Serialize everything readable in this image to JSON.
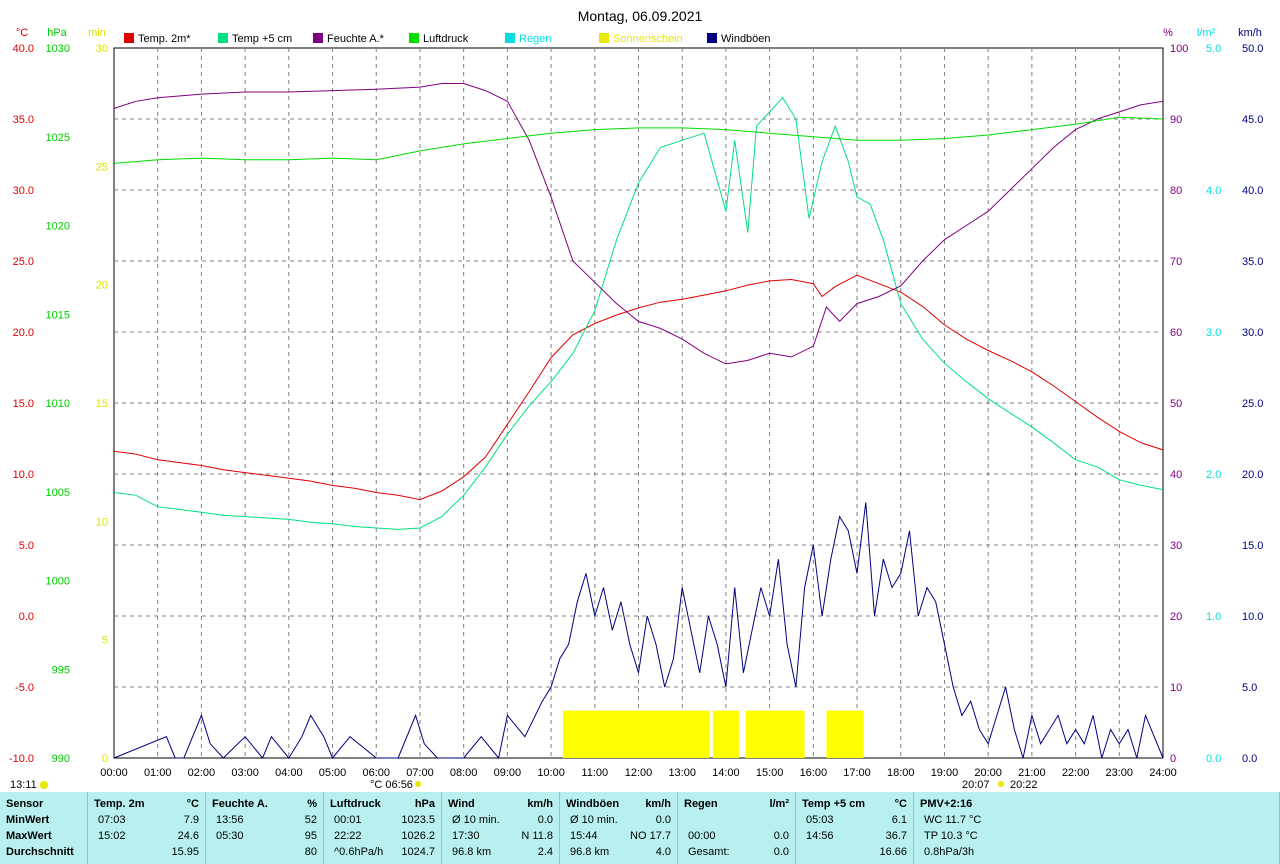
{
  "page": {
    "title": "Montag, 06.09.2021"
  },
  "axes": {
    "temp": {
      "unit": "°C",
      "color": "#e00000",
      "min": -10,
      "max": 40,
      "step": 5,
      "labels": [
        "-10.0",
        "-5.0",
        "0.0",
        "5.0",
        "10.0",
        "15.0",
        "20.0",
        "25.0",
        "30.0",
        "35.0",
        "40.0"
      ]
    },
    "pressure": {
      "unit": "hPa",
      "color": "#00cc00",
      "min": 990,
      "max": 1030,
      "step": 5,
      "labels": [
        "990",
        "995",
        "1000",
        "1005",
        "1010",
        "1015",
        "1020",
        "1025",
        "1030"
      ]
    },
    "sun": {
      "unit": "min",
      "color": "#e0e000",
      "min": 0,
      "max": 30,
      "step": 5,
      "labels": [
        "0",
        "5",
        "10",
        "15",
        "20",
        "25",
        "30"
      ]
    },
    "humidity": {
      "unit": "%",
      "color": "#800080",
      "min": 0,
      "max": 100,
      "step": 10,
      "labels": [
        "0",
        "10",
        "20",
        "30",
        "40",
        "50",
        "60",
        "70",
        "80",
        "90",
        "100"
      ]
    },
    "rain": {
      "unit": "l/m²",
      "color": "#00e0e0",
      "min": 0,
      "max": 5,
      "step": 1,
      "labels": [
        "0.0",
        "1.0",
        "2.0",
        "3.0",
        "4.0",
        "5.0"
      ]
    },
    "wind": {
      "unit": "km/h",
      "color": "#000080",
      "min": 0,
      "max": 50,
      "step": 5,
      "labels": [
        "0.0",
        "5.0",
        "10.0",
        "15.0",
        "20.0",
        "25.0",
        "30.0",
        "35.0",
        "40.0",
        "45.0",
        "50.0"
      ]
    }
  },
  "x_ticks": [
    "00:00",
    "01:00",
    "02:00",
    "03:00",
    "04:00",
    "05:00",
    "06:00",
    "07:00",
    "08:00",
    "09:00",
    "10:00",
    "11:00",
    "12:00",
    "13:00",
    "14:00",
    "15:00",
    "16:00",
    "17:00",
    "18:00",
    "19:00",
    "20:00",
    "21:00",
    "22:00",
    "23:00",
    "24:00"
  ],
  "annotations": {
    "sunrise_label": "°C 06:56",
    "sunset_label": "20:07",
    "sunset2_label": "20:22",
    "moon_label": "13:11"
  },
  "legend": [
    {
      "label": "Temp. 2m*",
      "color": "#e00000"
    },
    {
      "label": "Temp +5 cm",
      "color": "#00e080"
    },
    {
      "label": "Feuchte A.*",
      "color": "#800080"
    },
    {
      "label": "Luftdruck",
      "color": "#00dd00"
    },
    {
      "label": "Regen",
      "color": "#00e0e0"
    },
    {
      "label": "Sonnenschein",
      "color": "#e8e800"
    },
    {
      "label": "Windböen",
      "color": "#000080"
    }
  ],
  "chart_data": {
    "type": "line",
    "title": "Montag, 06.09.2021",
    "x_unit": "hours",
    "series": [
      {
        "name": "Temp. 2m*",
        "axis": "temp",
        "color": "#e00000",
        "x": [
          0,
          0.5,
          1,
          1.5,
          2,
          2.5,
          3,
          3.5,
          4,
          4.5,
          5,
          5.5,
          6,
          6.5,
          7,
          7.5,
          8,
          8.5,
          9,
          9.5,
          10,
          10.5,
          11,
          11.5,
          12,
          12.5,
          13,
          13.5,
          14,
          14.5,
          15,
          15.5,
          16,
          16.2,
          16.5,
          17,
          17.5,
          18,
          18.5,
          19,
          19.5,
          20,
          20.5,
          21,
          21.5,
          22,
          22.5,
          23,
          23.5,
          24
        ],
        "y": [
          11.6,
          11.4,
          11.0,
          10.8,
          10.6,
          10.3,
          10.1,
          9.9,
          9.7,
          9.5,
          9.2,
          9.0,
          8.7,
          8.5,
          8.2,
          8.8,
          9.8,
          11.2,
          13.5,
          15.8,
          18.2,
          19.8,
          20.6,
          21.2,
          21.7,
          22.1,
          22.3,
          22.6,
          22.9,
          23.3,
          23.6,
          23.7,
          23.4,
          22.5,
          23.2,
          24.0,
          23.4,
          22.8,
          21.8,
          20.5,
          19.5,
          18.7,
          18.0,
          17.2,
          16.2,
          15.1,
          14.0,
          13.0,
          12.2,
          11.7
        ]
      },
      {
        "name": "Temp +5 cm",
        "axis": "temp",
        "color": "#00e080",
        "x": [
          0,
          0.5,
          1,
          1.5,
          2,
          2.5,
          3,
          3.5,
          4,
          4.5,
          5,
          5.5,
          6,
          6.5,
          7,
          7.5,
          8,
          8.5,
          9,
          9.5,
          10,
          10.5,
          11,
          11.5,
          12,
          12.5,
          13,
          13.5,
          14,
          14.2,
          14.5,
          14.7,
          15,
          15.3,
          15.6,
          15.9,
          16.2,
          16.5,
          16.8,
          17,
          17.3,
          17.6,
          18,
          18.5,
          19,
          19.5,
          20,
          20.5,
          21,
          21.5,
          22,
          22.5,
          23,
          23.5,
          24
        ],
        "y": [
          8.7,
          8.5,
          7.7,
          7.5,
          7.3,
          7.1,
          7.0,
          6.9,
          6.8,
          6.6,
          6.5,
          6.3,
          6.2,
          6.1,
          6.2,
          7.0,
          8.5,
          10.5,
          12.8,
          14.8,
          16.5,
          18.5,
          21.5,
          26.5,
          30.5,
          33.0,
          33.5,
          34.0,
          28.5,
          33.5,
          27.0,
          34.5,
          35.5,
          36.5,
          35.0,
          28.0,
          32.0,
          34.5,
          32.0,
          29.5,
          29.0,
          26.5,
          22.0,
          19.5,
          17.8,
          16.5,
          15.3,
          14.3,
          13.3,
          12.2,
          11.0,
          10.5,
          9.6,
          9.2,
          8.9
        ]
      },
      {
        "name": "Feuchte A.*",
        "axis": "humidity",
        "color": "#800080",
        "x": [
          0,
          0.5,
          1,
          2,
          3,
          4,
          5,
          6,
          7,
          7.5,
          8,
          8.5,
          9,
          9.5,
          10,
          10.5,
          11,
          11.5,
          12,
          12.5,
          13,
          13.5,
          14,
          14.5,
          15,
          15.5,
          16,
          16.3,
          16.6,
          17,
          17.5,
          18,
          18.5,
          19,
          19.5,
          20,
          20.5,
          21,
          21.5,
          22,
          22.5,
          23,
          23.5,
          24
        ],
        "y": [
          91.5,
          92.5,
          93.0,
          93.5,
          93.8,
          93.8,
          94.0,
          94.2,
          94.5,
          95.0,
          95.0,
          94.0,
          92.5,
          87.0,
          79.0,
          70.0,
          67.0,
          64.0,
          61.5,
          60.5,
          59.0,
          57.0,
          55.5,
          56.0,
          57.0,
          56.5,
          58.0,
          63.5,
          61.5,
          64.0,
          65.0,
          66.5,
          70.0,
          73.0,
          75.0,
          77.0,
          80.0,
          83.0,
          86.0,
          88.5,
          90.0,
          91.0,
          92.0,
          92.5
        ]
      },
      {
        "name": "Luftdruck",
        "axis": "pressure",
        "color": "#00dd00",
        "x": [
          0,
          1,
          2,
          3,
          4,
          5,
          6,
          7,
          8,
          9,
          10,
          11,
          12,
          13,
          14,
          15,
          16,
          17,
          18,
          19,
          20,
          21,
          22,
          23,
          24
        ],
        "y": [
          1023.5,
          1023.7,
          1023.8,
          1023.7,
          1023.7,
          1023.8,
          1023.7,
          1024.2,
          1024.6,
          1024.9,
          1025.2,
          1025.4,
          1025.5,
          1025.5,
          1025.4,
          1025.2,
          1025.0,
          1024.8,
          1024.8,
          1024.9,
          1025.1,
          1025.4,
          1025.7,
          1026.1,
          1026.0
        ]
      },
      {
        "name": "Windböen",
        "axis": "wind",
        "color": "#000080",
        "x": [
          0,
          1.2,
          1.4,
          1.6,
          2,
          2.2,
          2.5,
          3,
          3.4,
          3.6,
          4,
          4.3,
          4.5,
          4.8,
          5,
          5.4,
          6,
          6.5,
          6.9,
          7.1,
          7.4,
          8,
          8.4,
          8.8,
          9,
          9.4,
          9.8,
          10,
          10.2,
          10.4,
          10.6,
          10.8,
          11,
          11.2,
          11.4,
          11.6,
          11.8,
          12,
          12.2,
          12.4,
          12.6,
          12.8,
          13,
          13.2,
          13.4,
          13.6,
          13.8,
          14,
          14.2,
          14.4,
          14.6,
          14.8,
          15,
          15.2,
          15.4,
          15.6,
          15.8,
          16,
          16.2,
          16.4,
          16.6,
          16.8,
          17,
          17.2,
          17.4,
          17.6,
          17.8,
          18,
          18.2,
          18.4,
          18.6,
          18.8,
          19,
          19.2,
          19.4,
          19.6,
          19.8,
          20,
          20.2,
          20.4,
          20.6,
          20.8,
          21,
          21.2,
          21.4,
          21.6,
          21.8,
          22,
          22.2,
          22.4,
          22.6,
          22.8,
          23,
          23.2,
          23.4,
          23.6,
          24
        ],
        "y": [
          0,
          1.5,
          0,
          0,
          3,
          1,
          0,
          1.5,
          0,
          1.5,
          0,
          1.5,
          3,
          1.5,
          0,
          1.5,
          0,
          0,
          3,
          1,
          0,
          0,
          1.5,
          0,
          3,
          1.5,
          4,
          5,
          7,
          8,
          11,
          13,
          10,
          12,
          9,
          11,
          8,
          6,
          10,
          8,
          5,
          7,
          12,
          9,
          6,
          10,
          8,
          5,
          12,
          6,
          9,
          12,
          10,
          14,
          8,
          5,
          12,
          15,
          10,
          14,
          17,
          16,
          13,
          18,
          10,
          14,
          12,
          13,
          16,
          10,
          12,
          11,
          8,
          5,
          3,
          4,
          2,
          1,
          3,
          5,
          2,
          0,
          3,
          1,
          2,
          3,
          1,
          2,
          1,
          3,
          0,
          2,
          1,
          2,
          0,
          3,
          0
        ]
      }
    ],
    "sunshine": {
      "name": "Sonnenschein",
      "axis": "sun",
      "unit": "min",
      "bars": [
        {
          "from": 10.27,
          "to": 13.62,
          "value": 2
        },
        {
          "from": 13.7,
          "to": 14.3,
          "value": 2
        },
        {
          "from": 14.45,
          "to": 15.8,
          "value": 2
        },
        {
          "from": 16.3,
          "to": 17.15,
          "value": 2
        }
      ]
    },
    "xlim": [
      0,
      24
    ],
    "grid": true,
    "legend_position": "top"
  },
  "table": {
    "rows": [
      "Sensor",
      "MinWert",
      "MaxWert",
      "Durchschnitt"
    ],
    "cols": [
      {
        "head": [
          "Temp. 2m",
          "°C"
        ],
        "cells": [
          [
            "07:03",
            "7.9"
          ],
          [
            "15:02",
            "24.6"
          ],
          [
            "",
            "15.95"
          ]
        ]
      },
      {
        "head": [
          "Feuchte A.",
          "%"
        ],
        "cells": [
          [
            "13:56",
            "52"
          ],
          [
            "05:30",
            "95"
          ],
          [
            "",
            "80"
          ]
        ]
      },
      {
        "head": [
          "Luftdruck",
          "hPa"
        ],
        "cells": [
          [
            "00:01",
            "1023.5"
          ],
          [
            "22:22",
            "1026.2"
          ],
          [
            "^0.6hPa/h",
            "1024.7"
          ]
        ]
      },
      {
        "head": [
          "Wind",
          "km/h"
        ],
        "cells": [
          [
            "Ø 10 min.",
            "0.0"
          ],
          [
            "17:30",
            "N 11.8"
          ],
          [
            "96.8 km",
            "2.4"
          ]
        ]
      },
      {
        "head": [
          "Windböen",
          "km/h"
        ],
        "cells": [
          [
            "Ø 10 min.",
            "0.0"
          ],
          [
            "15:44",
            "NO 17.7"
          ],
          [
            "96.8 km",
            "4.0"
          ]
        ]
      },
      {
        "head": [
          "Regen",
          "l/m²"
        ],
        "cells": [
          [
            "",
            ""
          ],
          [
            "00:00",
            "0.0"
          ],
          [
            "Gesamt:",
            "0.0"
          ]
        ]
      },
      {
        "head": [
          "Temp +5 cm",
          "°C"
        ],
        "cells": [
          [
            "05:03",
            "6.1"
          ],
          [
            "14:56",
            "36.7"
          ],
          [
            "",
            "16.66"
          ]
        ]
      },
      {
        "head": [
          "PMV+2:16",
          ""
        ],
        "cells": [
          [
            "WC 11.7 °C",
            ""
          ],
          [
            "TP 10.3 °C",
            ""
          ],
          [
            "0.8hPa/3h",
            ""
          ]
        ]
      }
    ]
  }
}
